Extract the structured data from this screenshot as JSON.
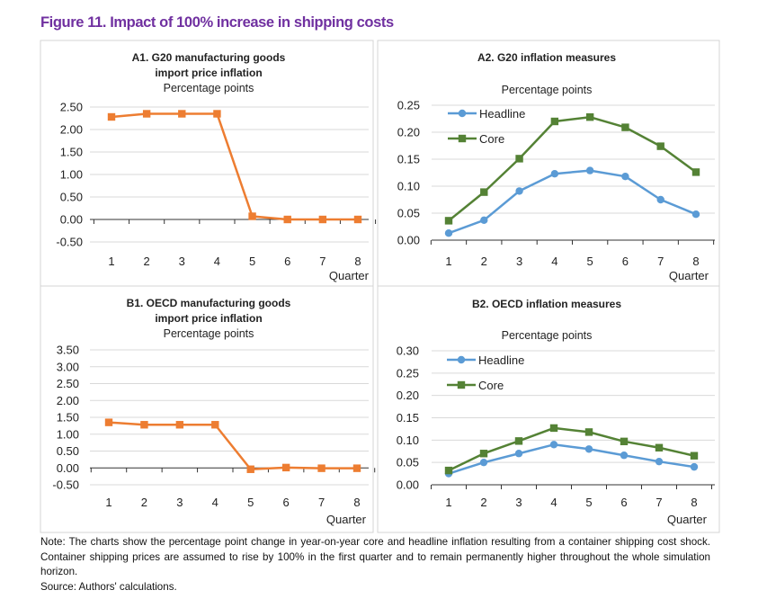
{
  "figure_title": "Figure 11. Impact of 100% increase in shipping costs",
  "note": "Note: The charts show the percentage point change in year-on-year core and headline inflation resulting from a container shipping cost shock. Container shipping prices are assumed to rise by 100% in the first quarter and to remain permanently higher throughout the whole simulation horizon.",
  "source": "Source: Authors' calculations.",
  "chart_data": [
    {
      "id": "A1",
      "type": "line",
      "title_lines": [
        "A1. G20 manufacturing goods",
        "import price inflation"
      ],
      "subtitle": "Percentage points",
      "xlabel": "Quarter",
      "categories": [
        "1",
        "2",
        "3",
        "4",
        "5",
        "6",
        "7",
        "8"
      ],
      "ylim": [
        -0.5,
        2.5
      ],
      "yticks": [
        "-0.50",
        "0.00",
        "0.50",
        "1.00",
        "1.50",
        "2.00",
        "2.50"
      ],
      "grid": true,
      "legend": "none",
      "series": [
        {
          "values": [
            2.28,
            2.35,
            2.35,
            2.35,
            0.07,
            0.0,
            0.0,
            0.0
          ],
          "color": "#ED7D31",
          "marker": "square"
        }
      ]
    },
    {
      "id": "A2",
      "type": "line",
      "title_lines": [
        "A2. G20 inflation measures"
      ],
      "subtitle": "Percentage points",
      "xlabel": "Quarter",
      "categories": [
        "1",
        "2",
        "3",
        "4",
        "5",
        "6",
        "7",
        "8"
      ],
      "ylim": [
        0,
        0.25
      ],
      "yticks": [
        "0.00",
        "0.05",
        "0.10",
        "0.15",
        "0.20",
        "0.25"
      ],
      "grid": true,
      "legend": "top-left",
      "series": [
        {
          "name": "Headline",
          "values": [
            0.013,
            0.037,
            0.091,
            0.123,
            0.129,
            0.118,
            0.075,
            0.048
          ],
          "color": "#5B9BD5",
          "marker": "circle"
        },
        {
          "name": "Core",
          "values": [
            0.036,
            0.089,
            0.151,
            0.22,
            0.228,
            0.209,
            0.174,
            0.126
          ],
          "color": "#548235",
          "marker": "square"
        }
      ]
    },
    {
      "id": "B1",
      "type": "line",
      "title_lines": [
        "B1. OECD manufacturing goods",
        "import price inflation"
      ],
      "subtitle": "Percentage points",
      "xlabel": "Quarter",
      "categories": [
        "1",
        "2",
        "3",
        "4",
        "5",
        "6",
        "7",
        "8"
      ],
      "ylim": [
        -0.5,
        3.5
      ],
      "yticks": [
        "-0.50",
        "0.00",
        "0.50",
        "1.00",
        "1.50",
        "2.00",
        "2.50",
        "3.00",
        "3.50"
      ],
      "grid": true,
      "legend": "none",
      "series": [
        {
          "values": [
            1.35,
            1.28,
            1.28,
            1.28,
            -0.04,
            0.01,
            -0.01,
            -0.01
          ],
          "color": "#ED7D31",
          "marker": "square"
        }
      ]
    },
    {
      "id": "B2",
      "type": "line",
      "title_lines": [
        "B2. OECD inflation measures"
      ],
      "subtitle": "Percentage points",
      "xlabel": "Quarter",
      "categories": [
        "1",
        "2",
        "3",
        "4",
        "5",
        "6",
        "7",
        "8"
      ],
      "ylim": [
        0,
        0.3
      ],
      "yticks": [
        "0.00",
        "0.05",
        "0.10",
        "0.15",
        "0.20",
        "0.25",
        "0.30"
      ],
      "grid": true,
      "legend": "top-left",
      "series": [
        {
          "name": "Headline",
          "values": [
            0.025,
            0.05,
            0.07,
            0.09,
            0.08,
            0.066,
            0.052,
            0.04
          ],
          "color": "#5B9BD5",
          "marker": "circle"
        },
        {
          "name": "Core",
          "values": [
            0.032,
            0.07,
            0.098,
            0.127,
            0.118,
            0.097,
            0.083,
            0.065
          ],
          "color": "#548235",
          "marker": "square"
        }
      ]
    }
  ]
}
